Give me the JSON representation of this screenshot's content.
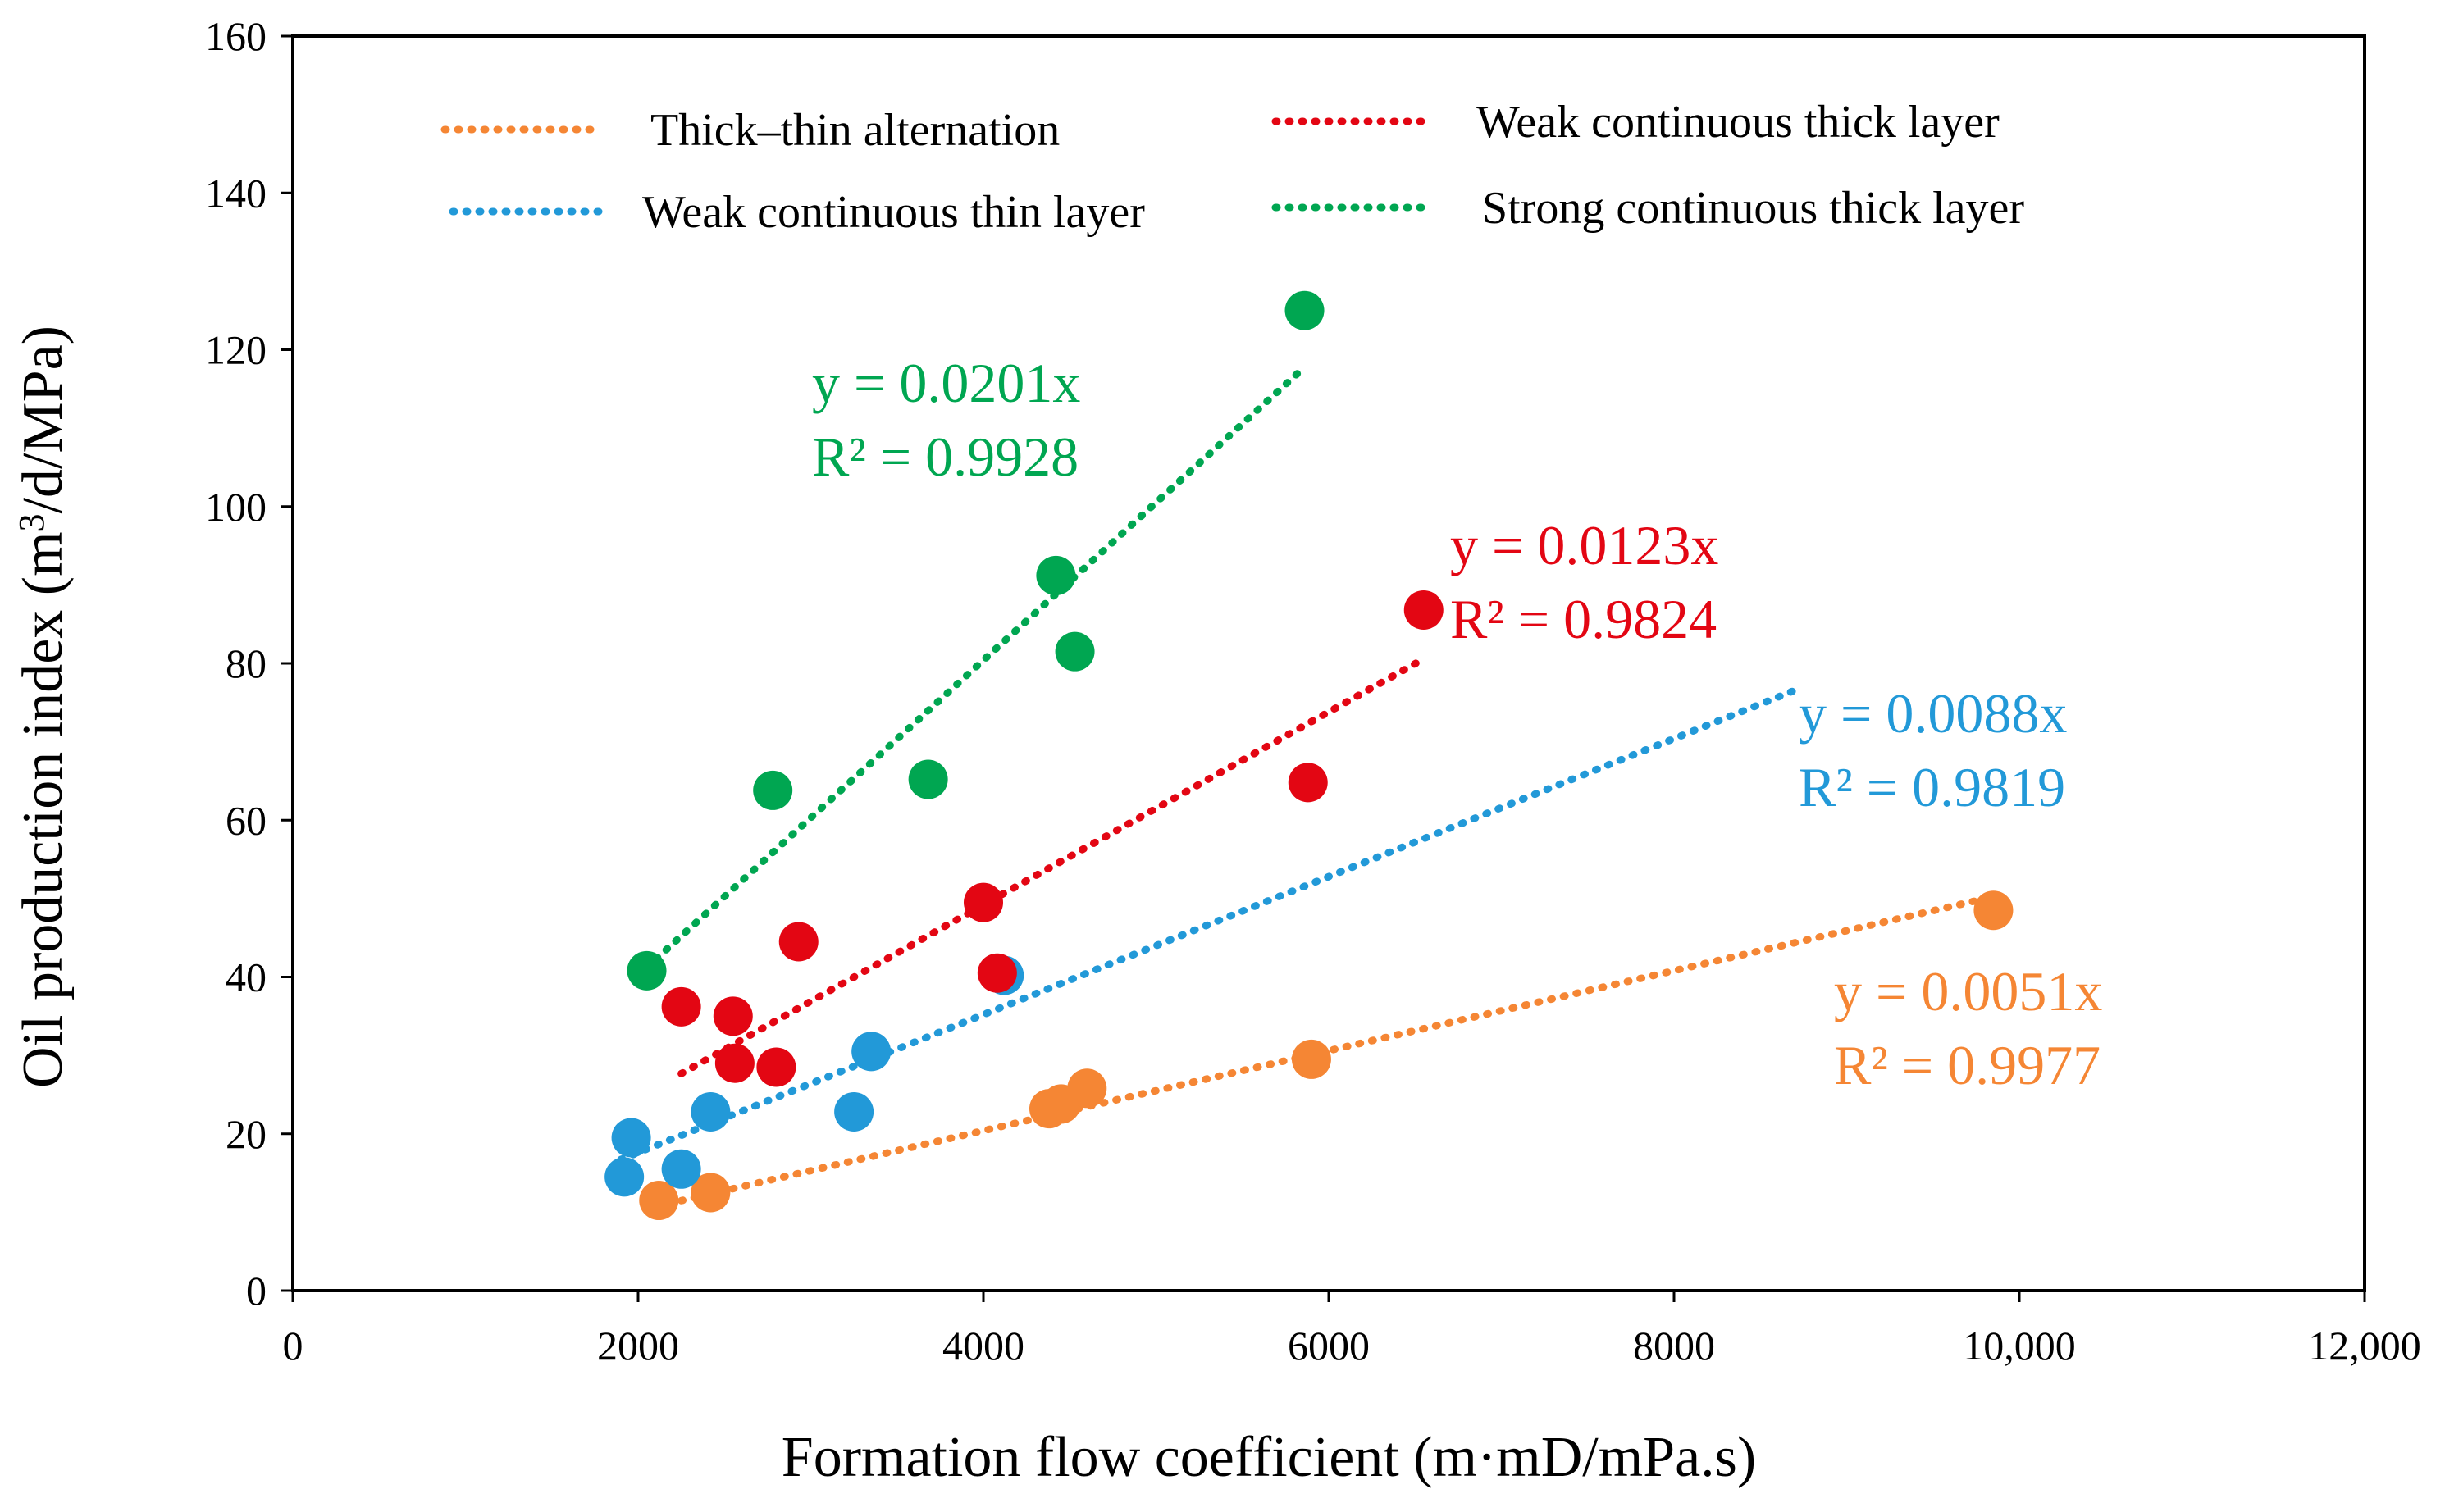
{
  "chart_data": {
    "type": "scatter",
    "xlabel": "Formation flow coefficient (m·mD/mPa.s)",
    "ylabel": {
      "prefix": "Oil production index (m",
      "sup": "3",
      "suffix": "/d/MPa)"
    },
    "xlim": [
      0,
      12000
    ],
    "ylim": [
      0,
      160
    ],
    "x_ticks": [
      {
        "value": 0,
        "label": "0"
      },
      {
        "value": 2000,
        "label": "2000"
      },
      {
        "value": 4000,
        "label": "4000"
      },
      {
        "value": 6000,
        "label": "6000"
      },
      {
        "value": 8000,
        "label": "8000"
      },
      {
        "value": 10000,
        "label": "10,000"
      },
      {
        "value": 12000,
        "label": "12,000"
      }
    ],
    "y_ticks": [
      {
        "value": 0,
        "label": "0"
      },
      {
        "value": 20,
        "label": "20"
      },
      {
        "value": 40,
        "label": "40"
      },
      {
        "value": 60,
        "label": "60"
      },
      {
        "value": 80,
        "label": "80"
      },
      {
        "value": 100,
        "label": "100"
      },
      {
        "value": 120,
        "label": "120"
      },
      {
        "value": 140,
        "label": "140"
      },
      {
        "value": 160,
        "label": "160"
      }
    ],
    "grid": false,
    "legend_position": "top",
    "series": [
      {
        "name": "Thick–thin alternation",
        "color": "#F58634",
        "points": [
          [
            2120,
            11.5
          ],
          [
            2420,
            12.5
          ],
          [
            4380,
            23.2
          ],
          [
            4450,
            23.8
          ],
          [
            4600,
            25.8
          ],
          [
            5900,
            29.5
          ],
          [
            9850,
            48.5
          ]
        ],
        "trendline": {
          "slope": 0.0051,
          "x_range": [
            2250,
            9850
          ]
        },
        "equation": "y = 0.0051x",
        "r2": "R² = 0.9977"
      },
      {
        "name": "Weak continuous thin layer",
        "color": "#2299D8",
        "points": [
          [
            1920,
            14.5
          ],
          [
            1960,
            19.5
          ],
          [
            2250,
            15.5
          ],
          [
            2420,
            22.8
          ],
          [
            3250,
            22.8
          ],
          [
            3350,
            30.5
          ],
          [
            4120,
            40.2
          ]
        ],
        "trendline": {
          "slope": 0.0088,
          "x_range": [
            1900,
            8700
          ]
        },
        "equation": "y = 0.0088x",
        "r2": "R² = 0.9819"
      },
      {
        "name": "Weak continuous thick layer",
        "color": "#E30613",
        "points": [
          [
            2250,
            36.2
          ],
          [
            2550,
            35.0
          ],
          [
            2560,
            29.0
          ],
          [
            2800,
            28.5
          ],
          [
            2930,
            44.5
          ],
          [
            4000,
            49.5
          ],
          [
            4080,
            40.5
          ],
          [
            5880,
            64.8
          ],
          [
            6550,
            86.8
          ]
        ],
        "trendline": {
          "slope": 0.0123,
          "x_range": [
            2250,
            6550
          ]
        },
        "equation": "y = 0.0123x",
        "r2": "R² = 0.9824"
      },
      {
        "name": "Strong continuous thick layer",
        "color": "#00A651",
        "points": [
          [
            2050,
            40.8
          ],
          [
            2780,
            63.8
          ],
          [
            3680,
            65.2
          ],
          [
            4420,
            91.2
          ],
          [
            4530,
            81.5
          ],
          [
            5860,
            125.0
          ]
        ],
        "trendline": {
          "slope": 0.0201,
          "x_range": [
            2050,
            5860
          ]
        },
        "equation": "y = 0.0201x",
        "r2": "R² = 0.9928"
      }
    ]
  }
}
